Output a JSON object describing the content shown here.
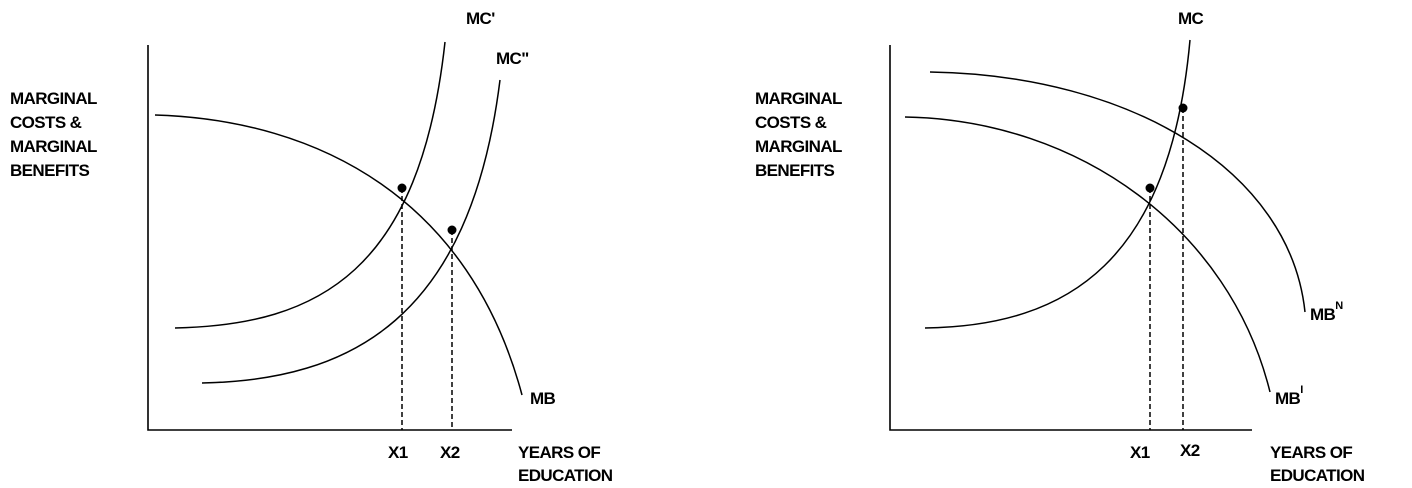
{
  "panels": [
    {
      "y_label": [
        "MARGINAL",
        "COSTS &",
        "MARGINAL",
        "BENEFITS"
      ],
      "curves": [
        "MC'",
        "MC\"",
        "MB"
      ],
      "x_marks": [
        "X1",
        "X2"
      ],
      "x_label": [
        "YEARS OF",
        "EDUCATION"
      ]
    },
    {
      "y_label": [
        "MARGINAL",
        "COSTS &",
        "MARGINAL",
        "BENEFITS"
      ],
      "curves": [
        {
          "base": "MC"
        },
        {
          "base": "MB",
          "sup": "N"
        },
        {
          "base": "MB",
          "sup": "I"
        }
      ],
      "x_marks": [
        "X1",
        "X2"
      ],
      "x_label": [
        "YEARS OF",
        "EDUCATION"
      ]
    }
  ]
}
